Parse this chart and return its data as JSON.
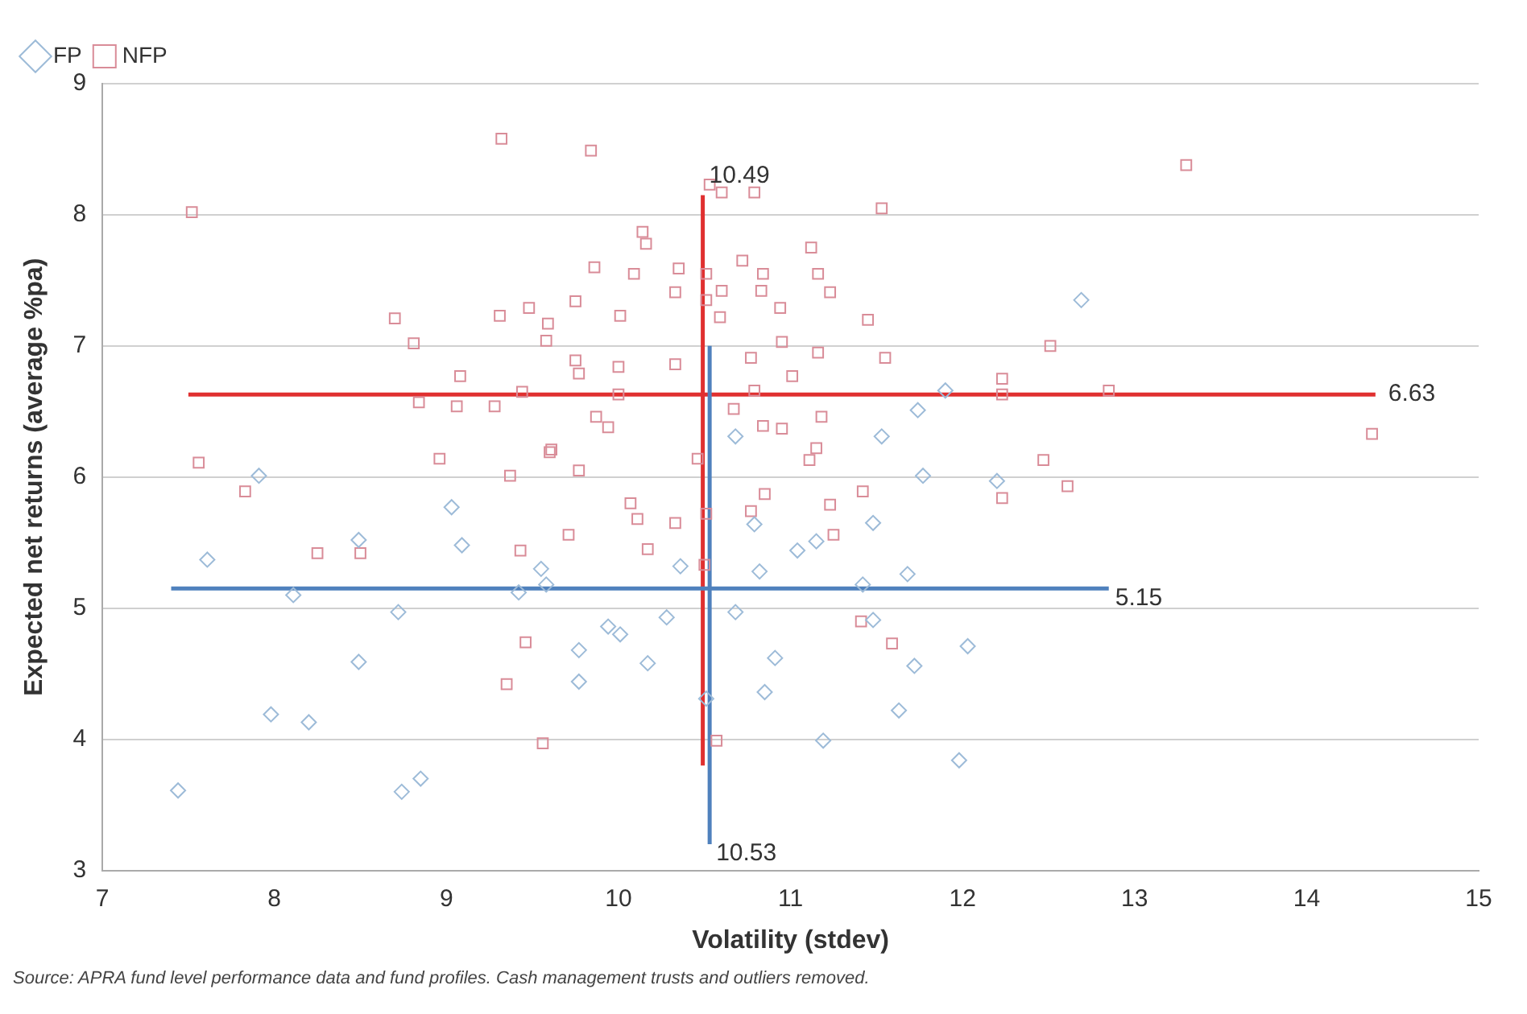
{
  "chart_data": {
    "type": "scatter",
    "xlabel": "Volatility (stdev)",
    "ylabel": "Expected net returns (average %pa)",
    "xlim": [
      7,
      15
    ],
    "xticks": [
      7,
      8,
      9,
      10,
      11,
      12,
      13,
      14,
      15
    ],
    "ylim": [
      3,
      9
    ],
    "yticks": [
      3,
      4,
      5,
      6,
      7,
      8,
      9
    ],
    "grid": "y",
    "legend": "top left",
    "series": [
      {
        "name": "FP",
        "color": "#9dbbd8",
        "marker": "diamond",
        "x": [
          7.61,
          8.11,
          8.72,
          8.49,
          7.98,
          8.2,
          7.44,
          8.74,
          8.85,
          9.03,
          9.09,
          8.49,
          9.55,
          9.58,
          9.42,
          7.91,
          9.77,
          9.77,
          9.94,
          10.01,
          10.17,
          10.28,
          10.36,
          10.68,
          10.82,
          10.91,
          10.85,
          10.51,
          11.04,
          11.15,
          11.48,
          11.68,
          11.42,
          11.48,
          12.03,
          11.72,
          11.63,
          11.19,
          11.98,
          10.79,
          11.9,
          11.74,
          11.53,
          11.77,
          10.68,
          12.2,
          12.69
        ],
        "values": [
          5.37,
          5.1,
          4.97,
          4.59,
          4.19,
          4.13,
          3.61,
          3.6,
          3.7,
          5.77,
          5.48,
          5.52,
          5.3,
          5.18,
          5.12,
          6.01,
          4.68,
          4.44,
          4.86,
          4.8,
          4.58,
          4.93,
          5.32,
          4.97,
          5.28,
          4.62,
          4.36,
          4.31,
          5.44,
          5.51,
          5.65,
          5.26,
          5.18,
          4.91,
          4.71,
          4.56,
          4.22,
          3.99,
          3.84,
          5.64,
          6.66,
          6.51,
          6.31,
          6.01,
          6.31,
          5.97,
          7.35
        ]
      },
      {
        "name": "NFP",
        "color": "#d98c98",
        "marker": "square",
        "x": [
          9.32,
          9.84,
          7.52,
          10.53,
          10.6,
          10.79,
          11.53,
          13.3,
          11.12,
          10.14,
          10.16,
          9.86,
          10.09,
          10.35,
          10.51,
          10.72,
          10.84,
          11.16,
          11.23,
          10.33,
          10.51,
          10.6,
          10.83,
          9.75,
          10.94,
          10.59,
          10.01,
          11.45,
          9.31,
          9.48,
          9.59,
          9.58,
          8.7,
          8.81,
          9.75,
          9.77,
          9.08,
          10.0,
          10.0,
          10.33,
          10.77,
          10.95,
          11.16,
          11.55,
          11.01,
          10.79,
          10.67,
          10.84,
          10.95,
          11.18,
          11.15,
          11.11,
          10.46,
          10.85,
          10.77,
          11.23,
          11.42,
          12.23,
          12.23,
          12.23,
          10.07,
          10.11,
          10.33,
          10.51,
          9.6,
          9.77,
          9.94,
          9.87,
          9.44,
          8.84,
          9.06,
          9.28,
          8.96,
          9.61,
          9.37,
          7.56,
          7.83,
          12.85,
          14.38,
          12.51,
          12.47,
          12.61,
          8.25,
          8.5,
          9.43,
          9.71,
          10.17,
          10.5,
          11.25,
          11.41,
          11.59,
          9.46,
          9.35,
          9.56,
          10.57
        ],
        "values": [
          8.58,
          8.49,
          8.02,
          8.23,
          8.17,
          8.17,
          8.05,
          8.38,
          7.75,
          7.87,
          7.78,
          7.6,
          7.55,
          7.59,
          7.55,
          7.65,
          7.55,
          7.55,
          7.41,
          7.41,
          7.35,
          7.42,
          7.42,
          7.34,
          7.29,
          7.22,
          7.23,
          7.2,
          7.23,
          7.29,
          7.17,
          7.04,
          7.21,
          7.02,
          6.89,
          6.79,
          6.77,
          6.84,
          6.63,
          6.86,
          6.91,
          7.03,
          6.95,
          6.91,
          6.77,
          6.66,
          6.52,
          6.39,
          6.37,
          6.46,
          6.22,
          6.13,
          6.14,
          5.87,
          5.74,
          5.79,
          5.89,
          6.75,
          6.63,
          5.84,
          5.8,
          5.68,
          5.65,
          5.72,
          6.19,
          6.05,
          6.38,
          6.46,
          6.65,
          6.57,
          6.54,
          6.54,
          6.14,
          6.21,
          6.01,
          6.11,
          5.89,
          6.66,
          6.33,
          7.0,
          6.13,
          5.93,
          5.42,
          5.42,
          5.44,
          5.56,
          5.45,
          5.33,
          5.56,
          4.9,
          4.73,
          4.74,
          4.42,
          3.97,
          3.99
        ]
      },
      {
        "type": "line",
        "color": "#4f81bd",
        "marker": "none",
        "line_style": "solid",
        "x": [
          7.4,
          12.85
        ],
        "values": [
          5.15,
          5.15
        ]
      },
      {
        "type": "line",
        "color": "#4f81bd",
        "marker": "none",
        "line_style": "solid",
        "x": [
          10.53,
          10.53
        ],
        "values": [
          3.2,
          7.0
        ]
      },
      {
        "type": "line",
        "color": "#e03030",
        "marker": "none",
        "line_style": "solid",
        "x": [
          7.5,
          14.4
        ],
        "values": [
          6.63,
          6.63
        ]
      },
      {
        "type": "line",
        "color": "#e03030",
        "marker": "none",
        "line_style": "solid",
        "x": [
          10.49,
          10.49
        ],
        "values": [
          3.8,
          8.15
        ]
      }
    ],
    "annotations": [
      {
        "text": "10.49",
        "x": 10.49,
        "y": 8.15
      },
      {
        "text": "6.63",
        "x": 14.4,
        "y": 6.63
      },
      {
        "text": "5.15",
        "x": 12.85,
        "y": 5.15
      },
      {
        "text": "10.53",
        "x": 10.53,
        "y": 3.2
      },
      "Source: APRA fund level performance data and fund profiles. Cash management trusts and outliers removed."
    ]
  }
}
